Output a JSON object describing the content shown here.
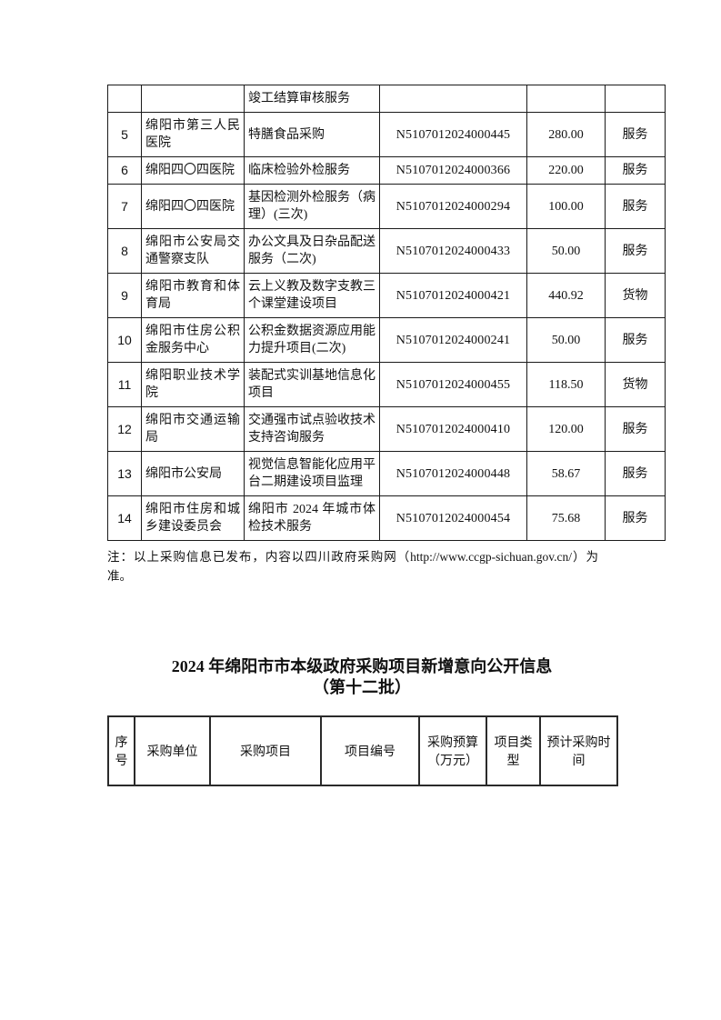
{
  "top_table": {
    "rows": [
      {
        "no": "",
        "unit": "",
        "project": "竣工结算审核服务",
        "code": "",
        "budget": "",
        "type": ""
      },
      {
        "no": "5",
        "unit": "绵阳市第三人民医院",
        "project": "特膳食品采购",
        "code": "N5107012024000445",
        "budget": "280.00",
        "type": "服务"
      },
      {
        "no": "6",
        "unit": "绵阳四〇四医院",
        "project": "临床检验外检服务",
        "code": "N5107012024000366",
        "budget": "220.00",
        "type": "服务"
      },
      {
        "no": "7",
        "unit": "绵阳四〇四医院",
        "project": "基因检测外检服务（病理）(三次)",
        "code": "N5107012024000294",
        "budget": "100.00",
        "type": "服务"
      },
      {
        "no": "8",
        "unit": "绵阳市公安局交通警察支队",
        "project": "办公文具及日杂品配送服务（二次)",
        "code": "N5107012024000433",
        "budget": "50.00",
        "type": "服务"
      },
      {
        "no": "9",
        "unit": "绵阳市教育和体育局",
        "project": "云上义教及数字支教三个课堂建设项目",
        "code": "N5107012024000421",
        "budget": "440.92",
        "type": "货物"
      },
      {
        "no": "10",
        "unit": "绵阳市住房公积金服务中心",
        "project": "公积金数据资源应用能力提升项目(二次)",
        "code": "N5107012024000241",
        "budget": "50.00",
        "type": "服务"
      },
      {
        "no": "11",
        "unit": "绵阳职业技术学院",
        "project": "装配式实训基地信息化项目",
        "code": "N5107012024000455",
        "budget": "118.50",
        "type": "货物"
      },
      {
        "no": "12",
        "unit": "绵阳市交通运输局",
        "project": "交通强市试点验收技术支持咨询服务",
        "code": "N5107012024000410",
        "budget": "120.00",
        "type": "服务"
      },
      {
        "no": "13",
        "unit": "绵阳市公安局",
        "project": "视觉信息智能化应用平台二期建设项目监理",
        "code": "N5107012024000448",
        "budget": "58.67",
        "type": "服务"
      },
      {
        "no": "14",
        "unit": "绵阳市住房和城乡建设委员会",
        "project": "绵阳市 2024 年城市体检技术服务",
        "code": "N5107012024000454",
        "budget": "75.68",
        "type": "服务"
      }
    ]
  },
  "note": "注：以上采购信息已发布，内容以四川政府采购网（http://www.ccgp-sichuan.gov.cn/）为准。",
  "section_title": {
    "line1": "2024 年绵阳市市本级政府采购项目新增意向公开信息",
    "line2": "（第十二批）"
  },
  "bottom_table": {
    "headers": [
      "序号",
      "采购单位",
      "采购项目",
      "项目编号",
      "采购预算（万元）",
      "项目类型",
      "预计采购时间"
    ]
  }
}
